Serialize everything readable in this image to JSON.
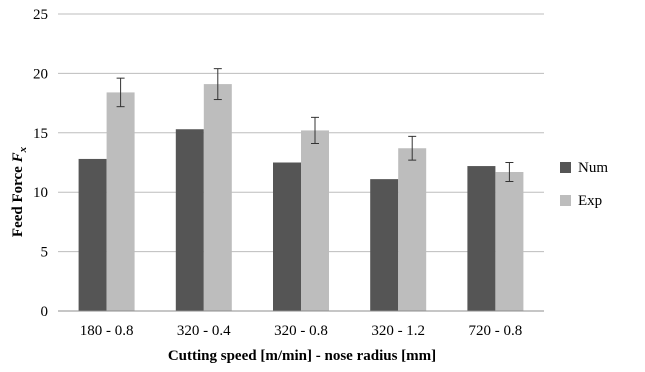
{
  "chart_data": {
    "type": "bar",
    "categories": [
      "180 - 0.8",
      "320 - 0.4",
      "320 - 0.8",
      "320 - 1.2",
      "720 - 0.8"
    ],
    "series": [
      {
        "name": "Num",
        "values": [
          12.8,
          15.3,
          12.5,
          11.1,
          12.2
        ],
        "color": "#555555"
      },
      {
        "name": "Exp",
        "values": [
          18.4,
          19.1,
          15.2,
          13.7,
          11.7
        ],
        "color": "#bdbdbd",
        "error": [
          1.2,
          1.3,
          1.1,
          1.0,
          0.8
        ]
      }
    ],
    "xlabel": "Cutting speed [m/min] - nose radius [mm]",
    "ylabel_main": "Feed Force ",
    "ylabel_var": "F",
    "ylabel_sub": "x",
    "yticks": [
      0,
      5,
      10,
      15,
      20,
      25
    ],
    "ylim": [
      0,
      25
    ],
    "grid": true,
    "legend_position": "right"
  }
}
